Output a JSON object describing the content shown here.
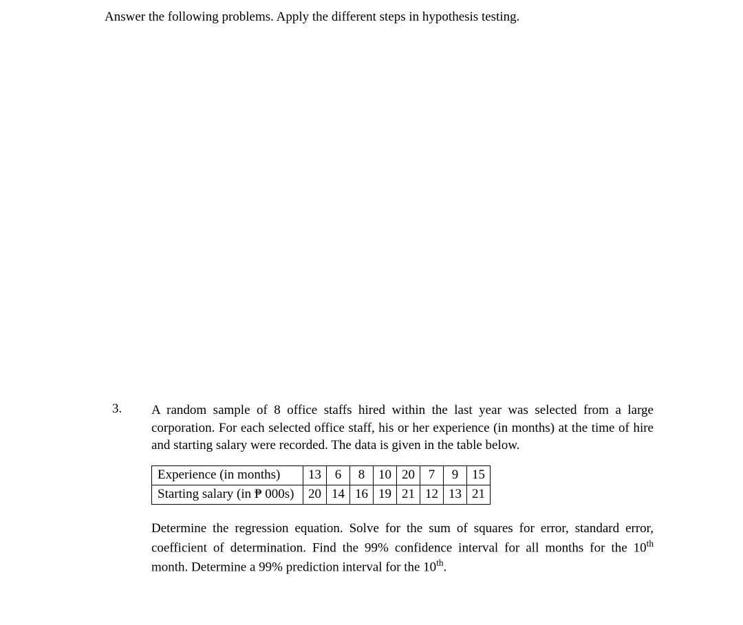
{
  "instruction": "Answer the following problems. Apply the different steps in hypothesis testing.",
  "problem": {
    "number": "3.",
    "intro": "A random sample of 8 office staffs hired within the last year was selected from a large corporation. For each selected office staff, his or her experience (in months) at the time of hire and starting salary were recorded. The data is given in the table below.",
    "table": {
      "row1_label": "Experience (in months)",
      "row1_values": [
        "13",
        "6",
        "8",
        "10",
        "20",
        "7",
        "9",
        "15"
      ],
      "row2_label": "Starting salary (in ₱ 000s)",
      "row2_values": [
        "20",
        "14",
        "16",
        "19",
        "21",
        "12",
        "13",
        "21"
      ]
    },
    "tasks_part1": "Determine the regression equation. Solve for the sum of squares for error, standard error, coefficient of determination. Find the 99% confidence interval for all months for the 10",
    "tasks_sup1": "th",
    "tasks_part2": " month. Determine a 99% prediction interval for the 10",
    "tasks_sup2": "th",
    "tasks_part3": "."
  },
  "styles": {
    "background_color": "#ffffff",
    "text_color": "#000000",
    "body_font_size": 19,
    "table_border_color": "#000000"
  }
}
